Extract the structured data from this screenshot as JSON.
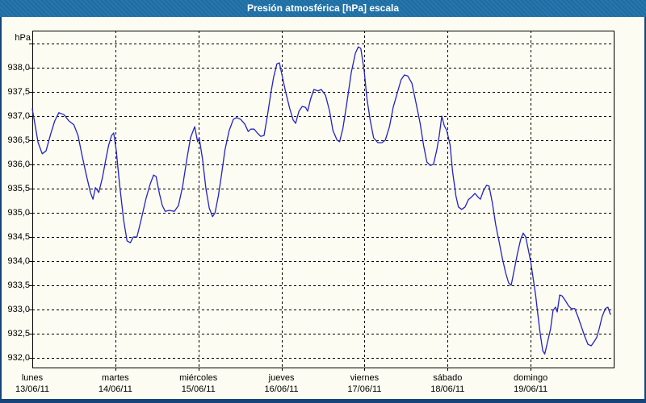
{
  "window": {
    "title": "Presión atmosférica [hPa] escala"
  },
  "colors": {
    "titlebar_bg": "#1d6fa6",
    "frame_border": "#15457a",
    "page_bg": "#fcfcf2",
    "grid": "#000000",
    "line": "#2323c8",
    "title_text": "#ffffff",
    "label_text": "#000000"
  },
  "chart_data": {
    "type": "line",
    "title": "Presión atmosférica [hPa] escala",
    "legend": "none",
    "grid": "dashed",
    "y_axis": {
      "unit_label": "hPa",
      "tick_values": [
        938.0,
        937.5,
        937.0,
        936.5,
        936.0,
        935.5,
        935.0,
        934.5,
        934.0,
        933.5,
        933.0,
        932.5,
        932.0
      ],
      "tick_labels": [
        "938,0",
        "937,5",
        "937,0",
        "936,5",
        "936,0",
        "935,5",
        "935,0",
        "934,5",
        "934,0",
        "933,5",
        "933,0",
        "932,5",
        "932,0"
      ],
      "top_unlabeled_gridline": 938.5,
      "ylim": [
        931.8,
        938.7667
      ],
      "decimal_separator": ","
    },
    "x_axis": {
      "xlim_days": [
        0,
        7
      ],
      "days": [
        {
          "name": "lunes",
          "date": "13/06/11"
        },
        {
          "name": "martes",
          "date": "14/06/11"
        },
        {
          "name": "miércoles",
          "date": "15/06/11"
        },
        {
          "name": "jueves",
          "date": "16/06/11"
        },
        {
          "name": "viernes",
          "date": "17/06/11"
        },
        {
          "name": "sábado",
          "date": "18/06/11"
        },
        {
          "name": "domingo",
          "date": "19/06/11"
        }
      ]
    },
    "series": [
      {
        "name": "Presión atmosférica",
        "color": "#2323c8",
        "points": [
          [
            0.0,
            937.15
          ],
          [
            0.03,
            936.85
          ],
          [
            0.07,
            936.45
          ],
          [
            0.12,
            936.22
          ],
          [
            0.165,
            936.28
          ],
          [
            0.22,
            936.62
          ],
          [
            0.27,
            936.9
          ],
          [
            0.32,
            937.07
          ],
          [
            0.38,
            937.03
          ],
          [
            0.44,
            936.9
          ],
          [
            0.5,
            936.82
          ],
          [
            0.55,
            936.6
          ],
          [
            0.6,
            936.18
          ],
          [
            0.65,
            935.78
          ],
          [
            0.7,
            935.42
          ],
          [
            0.73,
            935.28
          ],
          [
            0.76,
            935.52
          ],
          [
            0.8,
            935.42
          ],
          [
            0.845,
            935.73
          ],
          [
            0.885,
            936.1
          ],
          [
            0.92,
            936.4
          ],
          [
            0.955,
            936.6
          ],
          [
            0.98,
            936.65
          ],
          [
            1.01,
            936.3
          ],
          [
            1.05,
            935.6
          ],
          [
            1.1,
            934.85
          ],
          [
            1.14,
            934.42
          ],
          [
            1.18,
            934.38
          ],
          [
            1.215,
            934.5
          ],
          [
            1.26,
            934.5
          ],
          [
            1.31,
            934.85
          ],
          [
            1.37,
            935.3
          ],
          [
            1.42,
            935.6
          ],
          [
            1.46,
            935.78
          ],
          [
            1.49,
            935.75
          ],
          [
            1.53,
            935.4
          ],
          [
            1.565,
            935.15
          ],
          [
            1.6,
            935.03
          ],
          [
            1.65,
            935.05
          ],
          [
            1.71,
            935.03
          ],
          [
            1.76,
            935.15
          ],
          [
            1.81,
            935.55
          ],
          [
            1.86,
            936.1
          ],
          [
            1.905,
            936.55
          ],
          [
            1.955,
            936.78
          ],
          [
            1.99,
            936.47
          ],
          [
            2.01,
            936.55
          ],
          [
            2.05,
            936.1
          ],
          [
            2.09,
            935.5
          ],
          [
            2.13,
            935.1
          ],
          [
            2.17,
            934.92
          ],
          [
            2.2,
            935.0
          ],
          [
            2.24,
            935.35
          ],
          [
            2.275,
            935.75
          ],
          [
            2.32,
            936.3
          ],
          [
            2.37,
            936.7
          ],
          [
            2.42,
            936.93
          ],
          [
            2.46,
            936.97
          ],
          [
            2.51,
            936.93
          ],
          [
            2.56,
            936.83
          ],
          [
            2.6,
            936.68
          ],
          [
            2.63,
            936.73
          ],
          [
            2.67,
            936.73
          ],
          [
            2.71,
            936.65
          ],
          [
            2.75,
            936.58
          ],
          [
            2.79,
            936.6
          ],
          [
            2.83,
            937.0
          ],
          [
            2.87,
            937.45
          ],
          [
            2.905,
            937.8
          ],
          [
            2.945,
            938.08
          ],
          [
            2.975,
            938.1
          ],
          [
            3.01,
            937.82
          ],
          [
            3.05,
            937.5
          ],
          [
            3.1,
            937.15
          ],
          [
            3.14,
            936.92
          ],
          [
            3.17,
            936.85
          ],
          [
            3.21,
            937.1
          ],
          [
            3.25,
            937.2
          ],
          [
            3.29,
            937.18
          ],
          [
            3.315,
            937.1
          ],
          [
            3.35,
            937.35
          ],
          [
            3.39,
            937.55
          ],
          [
            3.44,
            937.52
          ],
          [
            3.48,
            937.55
          ],
          [
            3.53,
            937.43
          ],
          [
            3.58,
            937.1
          ],
          [
            3.62,
            936.7
          ],
          [
            3.67,
            936.5
          ],
          [
            3.7,
            936.47
          ],
          [
            3.74,
            936.75
          ],
          [
            3.79,
            937.3
          ],
          [
            3.84,
            937.9
          ],
          [
            3.89,
            938.3
          ],
          [
            3.925,
            938.43
          ],
          [
            3.955,
            938.4
          ],
          [
            3.995,
            937.95
          ],
          [
            4.03,
            937.35
          ],
          [
            4.07,
            936.9
          ],
          [
            4.11,
            936.55
          ],
          [
            4.16,
            936.45
          ],
          [
            4.21,
            936.45
          ],
          [
            4.25,
            936.5
          ],
          [
            4.3,
            936.78
          ],
          [
            4.345,
            937.18
          ],
          [
            4.39,
            937.45
          ],
          [
            4.44,
            937.75
          ],
          [
            4.48,
            937.85
          ],
          [
            4.52,
            937.83
          ],
          [
            4.57,
            937.68
          ],
          [
            4.62,
            937.27
          ],
          [
            4.67,
            936.85
          ],
          [
            4.71,
            936.4
          ],
          [
            4.75,
            936.05
          ],
          [
            4.79,
            935.98
          ],
          [
            4.83,
            936.0
          ],
          [
            4.87,
            936.3
          ],
          [
            4.9,
            936.6
          ],
          [
            4.93,
            937.0
          ],
          [
            4.96,
            936.8
          ],
          [
            4.99,
            936.7
          ],
          [
            5.03,
            936.4
          ],
          [
            5.06,
            935.85
          ],
          [
            5.1,
            935.35
          ],
          [
            5.13,
            935.12
          ],
          [
            5.17,
            935.07
          ],
          [
            5.21,
            935.12
          ],
          [
            5.25,
            935.27
          ],
          [
            5.29,
            935.33
          ],
          [
            5.33,
            935.4
          ],
          [
            5.37,
            935.32
          ],
          [
            5.395,
            935.28
          ],
          [
            5.43,
            935.45
          ],
          [
            5.47,
            935.57
          ],
          [
            5.5,
            935.55
          ],
          [
            5.54,
            935.2
          ],
          [
            5.58,
            934.75
          ],
          [
            5.62,
            934.4
          ],
          [
            5.66,
            934.05
          ],
          [
            5.7,
            933.75
          ],
          [
            5.735,
            933.55
          ],
          [
            5.765,
            933.5
          ],
          [
            5.8,
            933.8
          ],
          [
            5.84,
            934.15
          ],
          [
            5.88,
            934.45
          ],
          [
            5.91,
            934.58
          ],
          [
            5.94,
            934.5
          ],
          [
            5.97,
            934.25
          ],
          [
            6.0,
            934.0
          ],
          [
            6.03,
            933.65
          ],
          [
            6.06,
            933.3
          ],
          [
            6.09,
            932.85
          ],
          [
            6.115,
            932.5
          ],
          [
            6.145,
            932.15
          ],
          [
            6.17,
            932.08
          ],
          [
            6.2,
            932.3
          ],
          [
            6.24,
            932.6
          ],
          [
            6.27,
            932.98
          ],
          [
            6.3,
            933.05
          ],
          [
            6.32,
            932.95
          ],
          [
            6.35,
            933.3
          ],
          [
            6.38,
            933.28
          ],
          [
            6.42,
            933.18
          ],
          [
            6.455,
            933.08
          ],
          [
            6.49,
            933.02
          ],
          [
            6.53,
            933.02
          ],
          [
            6.57,
            932.85
          ],
          [
            6.61,
            932.65
          ],
          [
            6.65,
            932.45
          ],
          [
            6.69,
            932.28
          ],
          [
            6.73,
            932.25
          ],
          [
            6.77,
            932.35
          ],
          [
            6.795,
            932.42
          ],
          [
            6.825,
            932.6
          ],
          [
            6.86,
            932.85
          ],
          [
            6.9,
            933.02
          ],
          [
            6.93,
            933.05
          ],
          [
            6.96,
            932.9
          ]
        ]
      }
    ]
  }
}
